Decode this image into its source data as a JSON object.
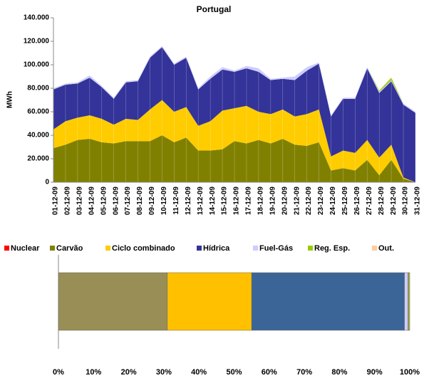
{
  "chart_data": [
    {
      "type": "stacked-area",
      "title": "Portugal",
      "y_label": "MWh",
      "categories": [
        "01-12-09",
        "02-12-09",
        "03-12-09",
        "04-12-09",
        "05-12-09",
        "06-12-09",
        "07-12-09",
        "08-12-09",
        "09-12-09",
        "10-12-09",
        "11-12-09",
        "12-12-09",
        "13-12-09",
        "14-12-09",
        "15-12-09",
        "16-12-09",
        "17-12-09",
        "18-12-09",
        "19-12-09",
        "20-12-09",
        "21-12-09",
        "22-12-09",
        "23-12-09",
        "24-12-09",
        "25-12-09",
        "26-12-09",
        "27-12-09",
        "28-12-09",
        "29-12-09",
        "30-12-09",
        "31-12-09"
      ],
      "series": [
        {
          "name": "Nuclear",
          "color": "#ff0000",
          "values": [
            0,
            0,
            0,
            0,
            0,
            0,
            0,
            0,
            0,
            0,
            0,
            0,
            0,
            0,
            0,
            0,
            0,
            0,
            0,
            0,
            0,
            0,
            0,
            0,
            0,
            0,
            0,
            0,
            0,
            0,
            0
          ]
        },
        {
          "name": "Carvão",
          "color": "#808000",
          "values": [
            29000,
            32000,
            36000,
            37000,
            34000,
            33000,
            35000,
            35000,
            35000,
            40000,
            34000,
            38000,
            27000,
            27000,
            28000,
            35000,
            33000,
            36000,
            33000,
            37000,
            32000,
            31000,
            34000,
            10000,
            12000,
            10000,
            19000,
            6000,
            19000,
            3000,
            0
          ]
        },
        {
          "name": "Ciclo combinado",
          "color": "#ffcc00",
          "values": [
            16000,
            20000,
            19000,
            20000,
            20000,
            16000,
            19000,
            18000,
            27000,
            30000,
            26000,
            26000,
            21000,
            25000,
            33000,
            28000,
            32000,
            24000,
            25000,
            25000,
            24000,
            27000,
            28000,
            12000,
            15000,
            15000,
            17000,
            15000,
            13000,
            1000,
            0
          ]
        },
        {
          "name": "Hídrica",
          "color": "#333399",
          "values": [
            34000,
            31000,
            29000,
            32000,
            27000,
            22000,
            31000,
            33000,
            44000,
            45000,
            40000,
            42000,
            31000,
            36000,
            35000,
            31000,
            32000,
            34000,
            29000,
            26000,
            31000,
            37000,
            39000,
            34000,
            44000,
            46000,
            61000,
            55000,
            54000,
            62000,
            59000
          ]
        },
        {
          "name": "Fuel-Gás",
          "color": "#ccccff",
          "values": [
            1000,
            1000,
            1000,
            2000,
            1000,
            1000,
            1000,
            1000,
            1000,
            1000,
            1000,
            1000,
            1000,
            2000,
            2000,
            1000,
            2000,
            3000,
            1000,
            1000,
            3000,
            3000,
            1000,
            1000,
            1000,
            1000,
            1000,
            1000,
            1000,
            1000,
            1000
          ]
        },
        {
          "name": "Reg. Esp.",
          "color": "#99cc00",
          "values": [
            0,
            0,
            0,
            0,
            0,
            0,
            0,
            0,
            0,
            0,
            0,
            0,
            0,
            0,
            0,
            0,
            0,
            0,
            0,
            0,
            0,
            0,
            0,
            0,
            0,
            0,
            0,
            1000,
            2000,
            0,
            0
          ]
        },
        {
          "name": "Out.",
          "color": "#ffcc99",
          "values": [
            0,
            0,
            0,
            0,
            0,
            0,
            0,
            0,
            0,
            0,
            0,
            0,
            0,
            0,
            0,
            0,
            0,
            0,
            0,
            0,
            0,
            0,
            0,
            0,
            0,
            0,
            0,
            0,
            0,
            0,
            0
          ]
        }
      ],
      "ylim": [
        0,
        140000
      ],
      "yticks": [
        0,
        {
          "value": 20000,
          "label": "20.000"
        },
        {
          "value": 40000,
          "label": "40.000"
        },
        {
          "value": 60000,
          "label": "60.000"
        },
        {
          "value": 80000,
          "label": "80.000"
        },
        {
          "value": 100000,
          "label": "100.000"
        },
        {
          "value": 120000,
          "label": "120.000"
        },
        {
          "value": 140000,
          "label": "140.000"
        }
      ],
      "legend": "between"
    },
    {
      "type": "stacked-bar-100",
      "values": [
        0,
        31,
        24,
        43.5,
        1,
        0.3,
        0.2
      ],
      "colors": [
        "#ff0000",
        "#998e55",
        "#ffc000",
        "#3b6596",
        "#ccccff",
        "#99cc00",
        "#ffcc99"
      ],
      "xlim": [
        0,
        100
      ],
      "xticks": [
        {
          "value": 0,
          "label": "0%"
        },
        {
          "value": 10,
          "label": "10%"
        },
        {
          "value": 20,
          "label": "20%"
        },
        {
          "value": 30,
          "label": "30%"
        },
        {
          "value": 40,
          "label": "40%"
        },
        {
          "value": 50,
          "label": "50%"
        },
        {
          "value": 60,
          "label": "60%"
        },
        {
          "value": 70,
          "label": "70%"
        },
        {
          "value": 80,
          "label": "80%"
        },
        {
          "value": 90,
          "label": "90%"
        },
        {
          "value": 100,
          "label": "100%"
        }
      ]
    }
  ]
}
